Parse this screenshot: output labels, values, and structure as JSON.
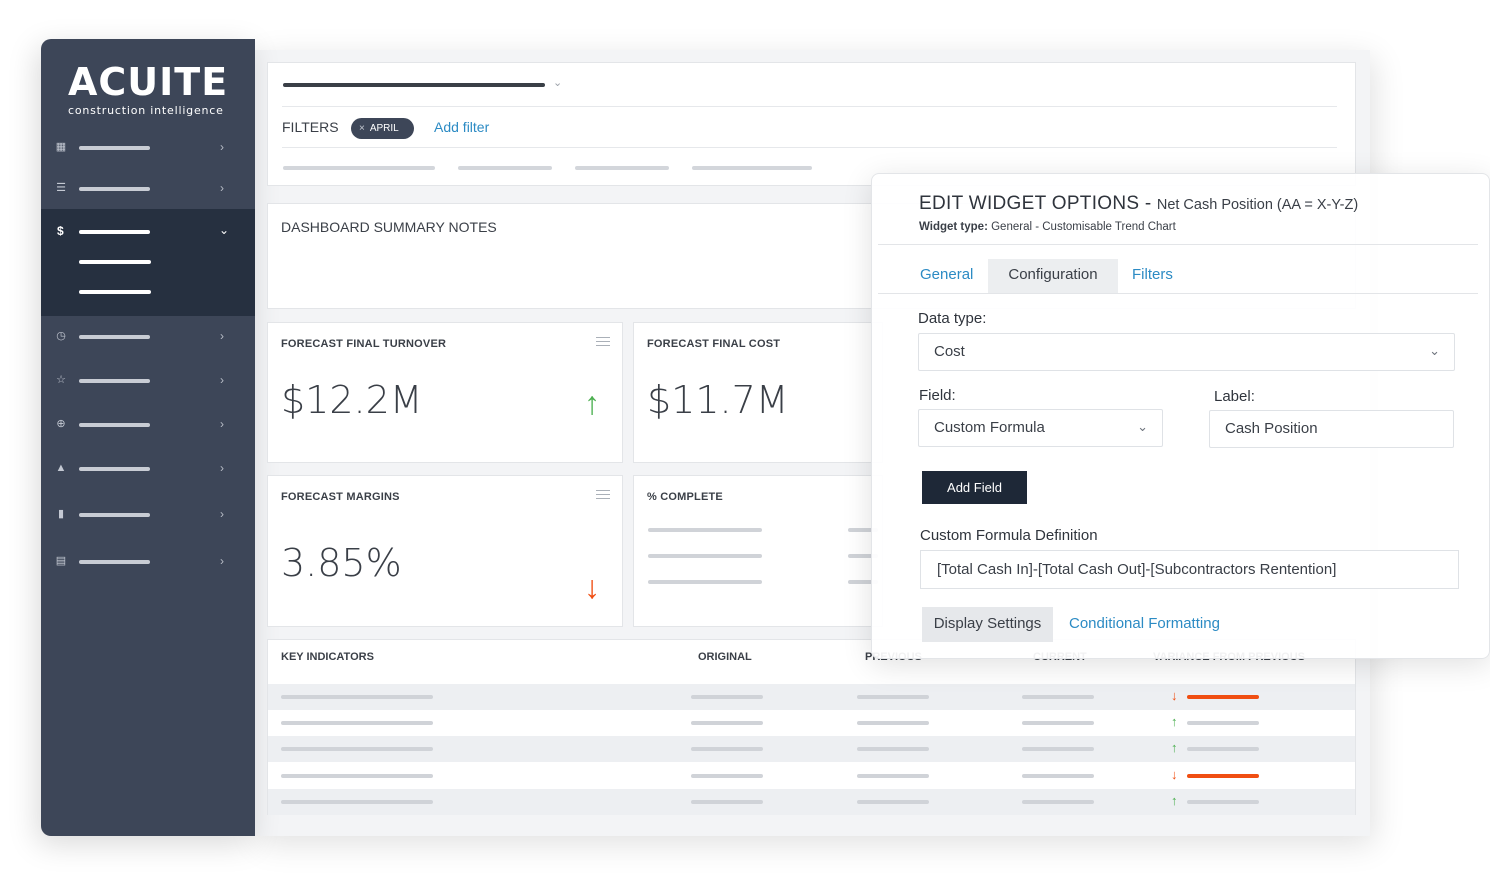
{
  "brand": {
    "name": "ACUITE",
    "tagline": "construction intelligence"
  },
  "sidebar": {
    "items": [
      {
        "icon": "dashboard-icon"
      },
      {
        "icon": "list-icon"
      },
      {
        "icon": "dollar-icon",
        "active": true,
        "glyph": "$"
      },
      {
        "icon": "clock-icon"
      },
      {
        "icon": "star-icon"
      },
      {
        "icon": "globe-icon"
      },
      {
        "icon": "warning-icon"
      },
      {
        "icon": "document-icon"
      },
      {
        "icon": "file-icon"
      }
    ]
  },
  "filters": {
    "label": "FILTERS",
    "chip": "APRIL",
    "add_filter": "Add filter"
  },
  "notes": {
    "title": "DASHBOARD SUMMARY NOTES"
  },
  "cards": {
    "turnover": {
      "title": "FORECAST FINAL TURNOVER",
      "value": "$12.2M",
      "trend": "up"
    },
    "cost": {
      "title": "FORECAST FINAL COST",
      "value": "$11.7M"
    },
    "margins": {
      "title": "FORECAST MARGINS",
      "value": "3.85%",
      "trend": "down"
    },
    "complete": {
      "title": "% COMPLETE"
    }
  },
  "table": {
    "headers": {
      "key": "KEY INDICATORS",
      "original": "ORIGINAL",
      "previous": "PREVIOUS",
      "current": "CURRENT",
      "variance": "VARIANCE FROM PREVIOUS"
    },
    "row_trends": [
      "down",
      "up",
      "up",
      "down",
      "up"
    ]
  },
  "modal": {
    "title": "EDIT WIDGET OPTIONS -",
    "subtitle": "Net Cash Position (AA = X-Y-Z)",
    "type_label": "Widget type:",
    "type_value": "General - Customisable Trend Chart",
    "tabs": {
      "general": "General",
      "configuration": "Configuration",
      "filters": "Filters"
    },
    "data_type_label": "Data type:",
    "data_type_value": "Cost",
    "field_label": "Field:",
    "field_value": "Custom Formula",
    "label_label": "Label:",
    "label_value": "Cash Position",
    "add_field": "Add Field",
    "formula_label": "Custom Formula Definition",
    "formula_value": "[Total Cash In]-[Total Cash Out]-[Subcontractors Rentention]",
    "display_settings": "Display Settings",
    "conditional_formatting": "Conditional Formatting"
  },
  "colors": {
    "up": "#4caf50",
    "down": "#f04e12",
    "link": "#2c8bc4",
    "sidebar": "#3d4658"
  }
}
